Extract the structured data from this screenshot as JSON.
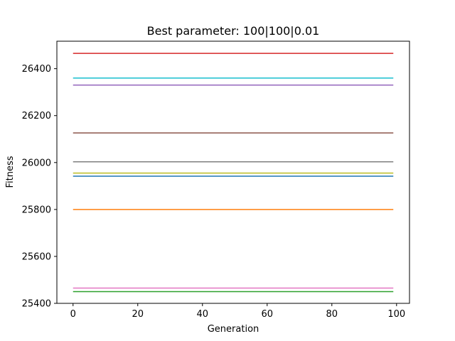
{
  "chart_data": {
    "type": "line",
    "title": "Best parameter: 100|100|0.01",
    "xlabel": "Generation",
    "ylabel": "Fitness",
    "xlim": [
      -5,
      104
    ],
    "ylim": [
      25400,
      26517
    ],
    "xticks": [
      0,
      20,
      40,
      60,
      80,
      100
    ],
    "yticks": [
      25400,
      25600,
      25800,
      26000,
      26200,
      26400
    ],
    "x_range": [
      0,
      99
    ],
    "grid": false,
    "series": [
      {
        "color": "#1f77b4",
        "value": 25942
      },
      {
        "color": "#ff7f0e",
        "value": 25800
      },
      {
        "color": "#2ca02c",
        "value": 25450
      },
      {
        "color": "#d62728",
        "value": 26465
      },
      {
        "color": "#9467bd",
        "value": 26330
      },
      {
        "color": "#8c564b",
        "value": 26126
      },
      {
        "color": "#e377c2",
        "value": 25465
      },
      {
        "color": "#7f7f7f",
        "value": 26003
      },
      {
        "color": "#bcbd22",
        "value": 25955
      },
      {
        "color": "#17becf",
        "value": 26360
      }
    ]
  }
}
